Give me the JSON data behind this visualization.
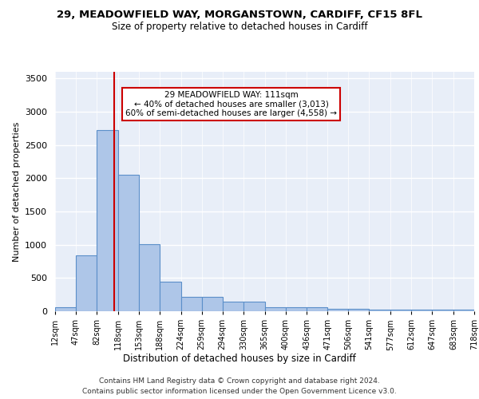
{
  "title_line1": "29, MEADOWFIELD WAY, MORGANSTOWN, CARDIFF, CF15 8FL",
  "title_line2": "Size of property relative to detached houses in Cardiff",
  "xlabel": "Distribution of detached houses by size in Cardiff",
  "ylabel": "Number of detached properties",
  "bin_edges": [
    12,
    47,
    82,
    118,
    153,
    188,
    224,
    259,
    294,
    330,
    365,
    400,
    436,
    471,
    506,
    541,
    577,
    612,
    647,
    683,
    718
  ],
  "bar_heights": [
    60,
    840,
    2720,
    2050,
    1010,
    450,
    220,
    220,
    150,
    150,
    60,
    60,
    60,
    40,
    40,
    30,
    30,
    30,
    30,
    30
  ],
  "bar_color": "#aec6e8",
  "bar_edge_color": "#5b8fc9",
  "red_line_x": 111,
  "red_line_color": "#cc0000",
  "annotation_text": "29 MEADOWFIELD WAY: 111sqm\n← 40% of detached houses are smaller (3,013)\n60% of semi-detached houses are larger (4,558) →",
  "annotation_box_color": "#ffffff",
  "annotation_box_edge": "#cc0000",
  "ylim": [
    0,
    3600
  ],
  "yticks": [
    0,
    500,
    1000,
    1500,
    2000,
    2500,
    3000,
    3500
  ],
  "background_color": "#e8eef8",
  "grid_color": "#ffffff",
  "footer_line1": "Contains HM Land Registry data © Crown copyright and database right 2024.",
  "footer_line2": "Contains public sector information licensed under the Open Government Licence v3.0."
}
